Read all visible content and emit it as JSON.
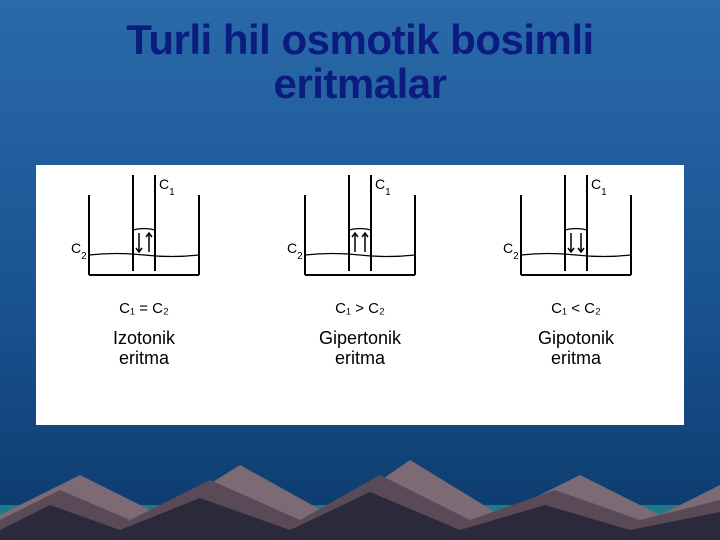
{
  "slide": {
    "title": "Turli hil osmotik bosimli\neritmalar",
    "title_color": "#0b1b80",
    "title_fontsize": 42,
    "background": {
      "top_color": "#2a6aa8",
      "bottom_color": "#0c3a6a",
      "gradient_stops": [
        "#2a6aa8",
        "#1a5392",
        "#0c3a6a"
      ]
    }
  },
  "content_card": {
    "background_color": "#ffffff"
  },
  "labels": {
    "c1": "C",
    "c1_sub": "1",
    "c2": "C",
    "c2_sub": "2"
  },
  "diagrams": [
    {
      "type": "osmosis-vessel",
      "arrows": "both-in",
      "relation_text": "C₁ = C₂",
      "name_line1": "Izotonik",
      "name_line2": "eritma"
    },
    {
      "type": "osmosis-vessel",
      "arrows": "both-up",
      "relation_text": "C₁ > C₂",
      "name_line1": "Gipertonik",
      "name_line2": "eritma"
    },
    {
      "type": "osmosis-vessel",
      "arrows": "both-down",
      "relation_text": "C₁ < C₂",
      "name_line1": "Gipotonik",
      "name_line2": "eritma"
    }
  ],
  "style": {
    "vessel_stroke": "#000000",
    "vessel_stroke_width": 2,
    "label_fontsize": 14,
    "relation_fontsize": 15,
    "name_fontsize": 18,
    "text_color": "#000000"
  },
  "mountains": {
    "dark_color": "#2b2a3a",
    "mid_color": "#5a4a58",
    "light_color": "#7c6a75",
    "water_color": "#1e7a8a"
  }
}
